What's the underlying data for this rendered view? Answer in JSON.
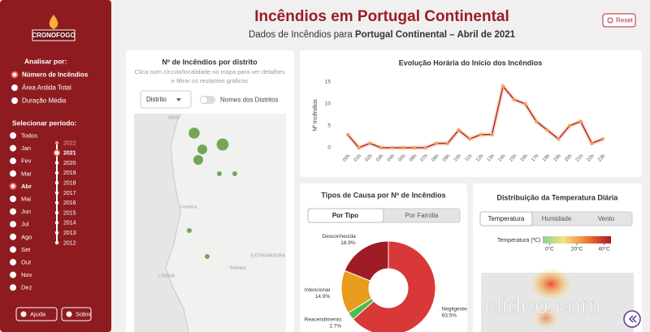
{
  "sidebar": {
    "logo": "CRONOFOGO",
    "analyze_label": "Analisar por:",
    "analyze_options": [
      "Número de Incêndios",
      "Área Ardida Total",
      "Duração Média"
    ],
    "period_label": "Selecionar período:",
    "months": [
      "Todos",
      "Jan",
      "Fev",
      "Mar",
      "Abr",
      "Mai",
      "Jun",
      "Jul",
      "Ago",
      "Set",
      "Out",
      "Nov",
      "Dez"
    ],
    "years": [
      "2022",
      "2021",
      "2020",
      "2019",
      "2018",
      "2017",
      "2016",
      "2015",
      "2014",
      "2013",
      "2012"
    ],
    "buttons": [
      "Ajuda",
      "Sobre"
    ]
  },
  "header": {
    "title": "Incêndios em Portugal Continental",
    "subtitle_prefix": "Dados de Incêndios para ",
    "subtitle_region": "Portugal Continental",
    "subtitle_suffix": " – Abril de 2021",
    "reset": "Reset"
  },
  "district_map": {
    "title": "Nº de Incêndios por distrito",
    "help": [
      "Clica num círculo/localidade no mapa para ver detalhes",
      "e filtrar os restantes gráficos"
    ],
    "dropdown": "Distrito",
    "toggle": "Nomes dos Distritos",
    "place_labels": [
      "VIGO",
      "Coimbra",
      "LISBOA",
      "EXTREMADURA",
      "Badajoz"
    ],
    "values": [
      5,
      4,
      6,
      4,
      1,
      1,
      1,
      1
    ]
  },
  "chart_data": [
    {
      "type": "line",
      "title": "Evolução Horária do Início dos Incêndios",
      "y_label": "Nº Incêndios",
      "categories": [
        "00h",
        "01h",
        "02h",
        "03h",
        "04h",
        "05h",
        "06h",
        "07h",
        "08h",
        "09h",
        "10h",
        "11h",
        "12h",
        "13h",
        "14h",
        "15h",
        "16h",
        "17h",
        "18h",
        "19h",
        "20h",
        "21h",
        "22h",
        "23h"
      ],
      "series": [
        {
          "name": "Nº Incêndios",
          "color": "#b5282e",
          "values": [
            3,
            0,
            1,
            0,
            0,
            0,
            0,
            0,
            1,
            1,
            4,
            2,
            3,
            3,
            14,
            11,
            10,
            6,
            4,
            2,
            5,
            6,
            1,
            2
          ]
        }
      ],
      "ylim": [
        0,
        15
      ],
      "yticks": [
        0,
        5,
        10,
        15
      ],
      "grid": false
    },
    {
      "type": "pie",
      "title": "Tipos de Causa por Nº de Incêndios",
      "tabs": [
        "Por Tipo",
        "Por Família"
      ],
      "categories": [
        "Negligente",
        "Reacendimento",
        "Intencional",
        "Desconhecida"
      ],
      "values": [
        63.5,
        2.7,
        14.9,
        18.9
      ],
      "value_labels": [
        "63.5%",
        "2.7%",
        "14.9%",
        "18.9%"
      ],
      "colors": [
        "#d93838",
        "#4cbb4c",
        "#e89c1c",
        "#9e1c26"
      ]
    }
  ],
  "temperature": {
    "title": "Distribuição da Temperatura Diária",
    "tabs": [
      "Temperatura",
      "Humidade",
      "Vento"
    ],
    "legend_title": "Temperatura (ºC)",
    "lim": [
      -5,
      45
    ],
    "ticks": [
      {
        "value": 0,
        "label": "0°C"
      },
      {
        "value": 20,
        "label": "20°C"
      },
      {
        "value": 40,
        "label": "40°C"
      }
    ]
  },
  "watermark": "clideo.com"
}
